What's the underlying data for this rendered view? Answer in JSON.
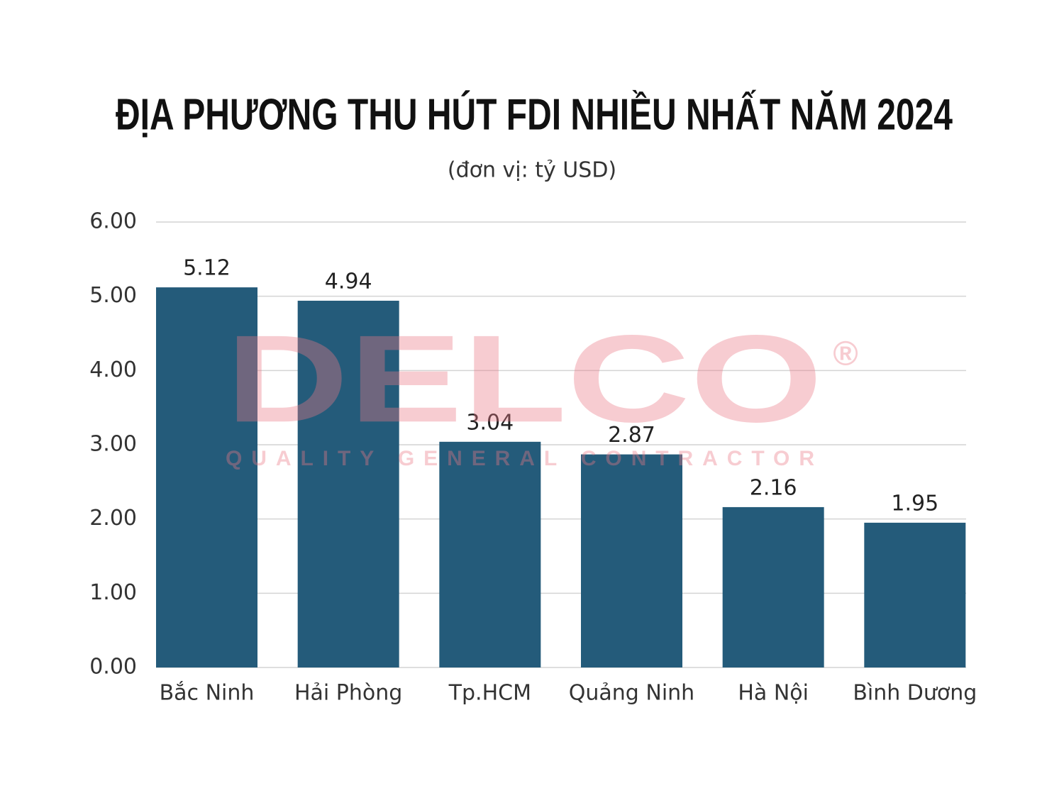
{
  "chart_data": {
    "type": "bar",
    "title": "ĐỊA PHƯƠNG THU HÚT FDI NHIỀU NHẤT NĂM 2024",
    "subtitle": "(đơn vị: tỷ USD)",
    "categories": [
      "Bắc Ninh",
      "Hải Phòng",
      "Tp.HCM",
      "Quảng Ninh",
      "Hà Nội",
      "Bình Dương"
    ],
    "values": [
      5.12,
      4.94,
      3.04,
      2.87,
      2.16,
      1.95
    ],
    "color": "#245b7a",
    "ylim": [
      0,
      6
    ],
    "yticks": [
      {
        "value": 0,
        "label": "0.00"
      },
      {
        "value": 1,
        "label": "1.00"
      },
      {
        "value": 2,
        "label": "2.00"
      },
      {
        "value": 3,
        "label": "3.00"
      },
      {
        "value": 4,
        "label": "4.00"
      },
      {
        "value": 5,
        "label": "5.00"
      },
      {
        "value": 6,
        "label": "6.00"
      }
    ],
    "grid": true,
    "watermark": {
      "logo": "DELCO",
      "mark": "®",
      "tagline": "QUALITY GENERAL CONTRACTOR"
    }
  }
}
